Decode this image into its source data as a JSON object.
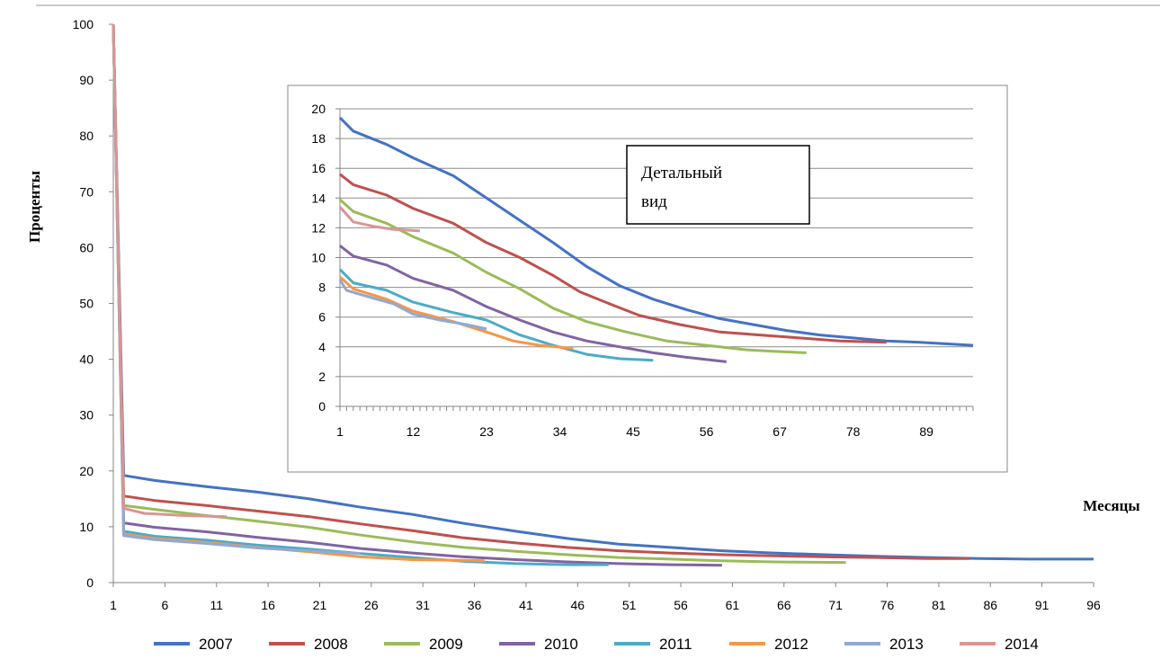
{
  "chart_data": [
    {
      "type": "line",
      "id": "main",
      "title": "",
      "ylabel": "Проценты",
      "xlabel": "Месяцы",
      "ylim": [
        0,
        100
      ],
      "xlim": [
        1,
        96
      ],
      "y_ticks": [
        "0",
        "10",
        "20",
        "30",
        "40",
        "50",
        "60",
        "70",
        "80",
        "90",
        "100"
      ],
      "x_ticks": [
        "1",
        "6",
        "11",
        "16",
        "21",
        "26",
        "31",
        "36",
        "41",
        "46",
        "51",
        "56",
        "61",
        "66",
        "71",
        "76",
        "81",
        "86",
        "91",
        "96"
      ],
      "grid": false,
      "series": [
        {
          "name": "2007",
          "color": "#4472c4",
          "points": [
            [
              1,
              100
            ],
            [
              2,
              19.2
            ],
            [
              5,
              18.3
            ],
            [
              10,
              17.2
            ],
            [
              15,
              16.2
            ],
            [
              20,
              15.0
            ],
            [
              25,
              13.5
            ],
            [
              30,
              12.2
            ],
            [
              35,
              10.6
            ],
            [
              40,
              9.2
            ],
            [
              45,
              7.9
            ],
            [
              50,
              6.9
            ],
            [
              55,
              6.3
            ],
            [
              60,
              5.7
            ],
            [
              65,
              5.3
            ],
            [
              70,
              5.0
            ],
            [
              75,
              4.7
            ],
            [
              80,
              4.5
            ],
            [
              85,
              4.3
            ],
            [
              90,
              4.2
            ],
            [
              96,
              4.2
            ]
          ]
        },
        {
          "name": "2008",
          "color": "#c0504d",
          "points": [
            [
              1,
              100
            ],
            [
              2,
              15.5
            ],
            [
              5,
              14.7
            ],
            [
              10,
              13.8
            ],
            [
              15,
              12.8
            ],
            [
              20,
              11.8
            ],
            [
              25,
              10.5
            ],
            [
              30,
              9.3
            ],
            [
              35,
              8.0
            ],
            [
              40,
              7.1
            ],
            [
              45,
              6.3
            ],
            [
              50,
              5.7
            ],
            [
              55,
              5.3
            ],
            [
              60,
              5.0
            ],
            [
              65,
              4.8
            ],
            [
              70,
              4.6
            ],
            [
              75,
              4.5
            ],
            [
              80,
              4.3
            ],
            [
              84,
              4.3
            ]
          ]
        },
        {
          "name": "2009",
          "color": "#9bbb59",
          "points": [
            [
              1,
              100
            ],
            [
              2,
              13.8
            ],
            [
              5,
              13.1
            ],
            [
              10,
              12.0
            ],
            [
              15,
              11.0
            ],
            [
              20,
              9.9
            ],
            [
              25,
              8.5
            ],
            [
              30,
              7.3
            ],
            [
              35,
              6.3
            ],
            [
              40,
              5.6
            ],
            [
              45,
              5.0
            ],
            [
              50,
              4.5
            ],
            [
              55,
              4.2
            ],
            [
              60,
              3.9
            ],
            [
              65,
              3.7
            ],
            [
              72,
              3.6
            ]
          ]
        },
        {
          "name": "2010",
          "color": "#8064a2",
          "points": [
            [
              1,
              100
            ],
            [
              2,
              10.7
            ],
            [
              5,
              9.9
            ],
            [
              10,
              9.1
            ],
            [
              15,
              8.1
            ],
            [
              20,
              7.2
            ],
            [
              25,
              6.1
            ],
            [
              30,
              5.3
            ],
            [
              35,
              4.6
            ],
            [
              40,
              4.1
            ],
            [
              45,
              3.7
            ],
            [
              50,
              3.4
            ],
            [
              55,
              3.2
            ],
            [
              60,
              3.1
            ]
          ]
        },
        {
          "name": "2011",
          "color": "#4bacc6",
          "points": [
            [
              1,
              100
            ],
            [
              2,
              9.2
            ],
            [
              5,
              8.3
            ],
            [
              10,
              7.6
            ],
            [
              15,
              6.7
            ],
            [
              20,
              6.0
            ],
            [
              25,
              5.2
            ],
            [
              30,
              4.5
            ],
            [
              35,
              3.8
            ],
            [
              40,
              3.4
            ],
            [
              45,
              3.2
            ],
            [
              49,
              3.2
            ]
          ]
        },
        {
          "name": "2012",
          "color": "#f79646",
          "points": [
            [
              1,
              100
            ],
            [
              2,
              8.7
            ],
            [
              5,
              7.9
            ],
            [
              10,
              7.2
            ],
            [
              15,
              6.3
            ],
            [
              20,
              5.5
            ],
            [
              25,
              4.6
            ],
            [
              30,
              4.1
            ],
            [
              35,
              4.0
            ],
            [
              37,
              3.9
            ]
          ]
        },
        {
          "name": "2013",
          "color": "#8fa9d6",
          "points": [
            [
              1,
              100
            ],
            [
              2,
              8.4
            ],
            [
              5,
              7.7
            ],
            [
              10,
              7.0
            ],
            [
              15,
              6.2
            ],
            [
              20,
              5.7
            ],
            [
              25,
              5.2
            ]
          ]
        },
        {
          "name": "2014",
          "color": "#d99594",
          "points": [
            [
              1,
              100
            ],
            [
              2,
              13.3
            ],
            [
              4,
              12.4
            ],
            [
              8,
              12.0
            ],
            [
              12,
              11.8
            ]
          ]
        }
      ],
      "legend_position": "bottom"
    },
    {
      "type": "line",
      "id": "inset",
      "title": "",
      "ylim": [
        0,
        20
      ],
      "xlim": [
        1,
        96
      ],
      "y_ticks": [
        "0",
        "2",
        "4",
        "6",
        "8",
        "10",
        "12",
        "14",
        "16",
        "18",
        "20"
      ],
      "x_ticks": [
        "1",
        "12",
        "23",
        "34",
        "45",
        "56",
        "67",
        "78",
        "89"
      ],
      "grid": true,
      "annotation": "Детальный вид",
      "series": [
        {
          "name": "2007",
          "color": "#4472c4",
          "points": [
            [
              1,
              19.4
            ],
            [
              3,
              18.5
            ],
            [
              8,
              17.6
            ],
            [
              12,
              16.7
            ],
            [
              18,
              15.5
            ],
            [
              23,
              14.0
            ],
            [
              28,
              12.5
            ],
            [
              33,
              11.0
            ],
            [
              38,
              9.4
            ],
            [
              43,
              8.1
            ],
            [
              48,
              7.2
            ],
            [
              53,
              6.5
            ],
            [
              58,
              5.9
            ],
            [
              63,
              5.5
            ],
            [
              68,
              5.1
            ],
            [
              73,
              4.8
            ],
            [
              78,
              4.6
            ],
            [
              83,
              4.4
            ],
            [
              88,
              4.3
            ],
            [
              96,
              4.1
            ]
          ]
        },
        {
          "name": "2008",
          "color": "#c0504d",
          "points": [
            [
              1,
              15.6
            ],
            [
              3,
              14.9
            ],
            [
              8,
              14.2
            ],
            [
              12,
              13.3
            ],
            [
              18,
              12.3
            ],
            [
              23,
              11.0
            ],
            [
              28,
              10.0
            ],
            [
              33,
              8.8
            ],
            [
              37,
              7.7
            ],
            [
              42,
              6.8
            ],
            [
              46,
              6.1
            ],
            [
              52,
              5.5
            ],
            [
              58,
              5.0
            ],
            [
              64,
              4.8
            ],
            [
              70,
              4.6
            ],
            [
              76,
              4.4
            ],
            [
              83,
              4.3
            ]
          ]
        },
        {
          "name": "2009",
          "color": "#9bbb59",
          "points": [
            [
              1,
              13.9
            ],
            [
              3,
              13.1
            ],
            [
              8,
              12.3
            ],
            [
              12,
              11.4
            ],
            [
              18,
              10.3
            ],
            [
              23,
              9.0
            ],
            [
              28,
              7.9
            ],
            [
              33,
              6.6
            ],
            [
              38,
              5.7
            ],
            [
              44,
              5.0
            ],
            [
              50,
              4.4
            ],
            [
              56,
              4.1
            ],
            [
              62,
              3.8
            ],
            [
              66,
              3.7
            ],
            [
              71,
              3.6
            ]
          ]
        },
        {
          "name": "2010",
          "color": "#8064a2",
          "points": [
            [
              1,
              10.8
            ],
            [
              3,
              10.1
            ],
            [
              8,
              9.5
            ],
            [
              12,
              8.6
            ],
            [
              18,
              7.8
            ],
            [
              23,
              6.7
            ],
            [
              28,
              5.8
            ],
            [
              33,
              5.0
            ],
            [
              38,
              4.4
            ],
            [
              43,
              4.0
            ],
            [
              48,
              3.6
            ],
            [
              53,
              3.3
            ],
            [
              59,
              3.0
            ]
          ]
        },
        {
          "name": "2011",
          "color": "#4bacc6",
          "points": [
            [
              1,
              9.2
            ],
            [
              3,
              8.3
            ],
            [
              8,
              7.8
            ],
            [
              12,
              7.0
            ],
            [
              18,
              6.3
            ],
            [
              23,
              5.8
            ],
            [
              28,
              4.8
            ],
            [
              33,
              4.1
            ],
            [
              38,
              3.5
            ],
            [
              43,
              3.2
            ],
            [
              48,
              3.1
            ]
          ]
        },
        {
          "name": "2012",
          "color": "#f79646",
          "points": [
            [
              1,
              8.7
            ],
            [
              3,
              7.9
            ],
            [
              8,
              7.2
            ],
            [
              12,
              6.4
            ],
            [
              18,
              5.7
            ],
            [
              23,
              5.0
            ],
            [
              27,
              4.4
            ],
            [
              31,
              4.1
            ],
            [
              36,
              3.9
            ]
          ]
        },
        {
          "name": "2013",
          "color": "#8fa9d6",
          "points": [
            [
              1,
              8.5
            ],
            [
              2,
              7.8
            ],
            [
              5,
              7.4
            ],
            [
              9,
              6.9
            ],
            [
              12,
              6.2
            ],
            [
              16,
              5.8
            ],
            [
              20,
              5.5
            ],
            [
              23,
              5.2
            ]
          ]
        },
        {
          "name": "2014",
          "color": "#d99594",
          "points": [
            [
              1,
              13.4
            ],
            [
              3,
              12.4
            ],
            [
              6,
              12.1
            ],
            [
              9,
              11.9
            ],
            [
              13,
              11.8
            ]
          ]
        }
      ]
    }
  ]
}
